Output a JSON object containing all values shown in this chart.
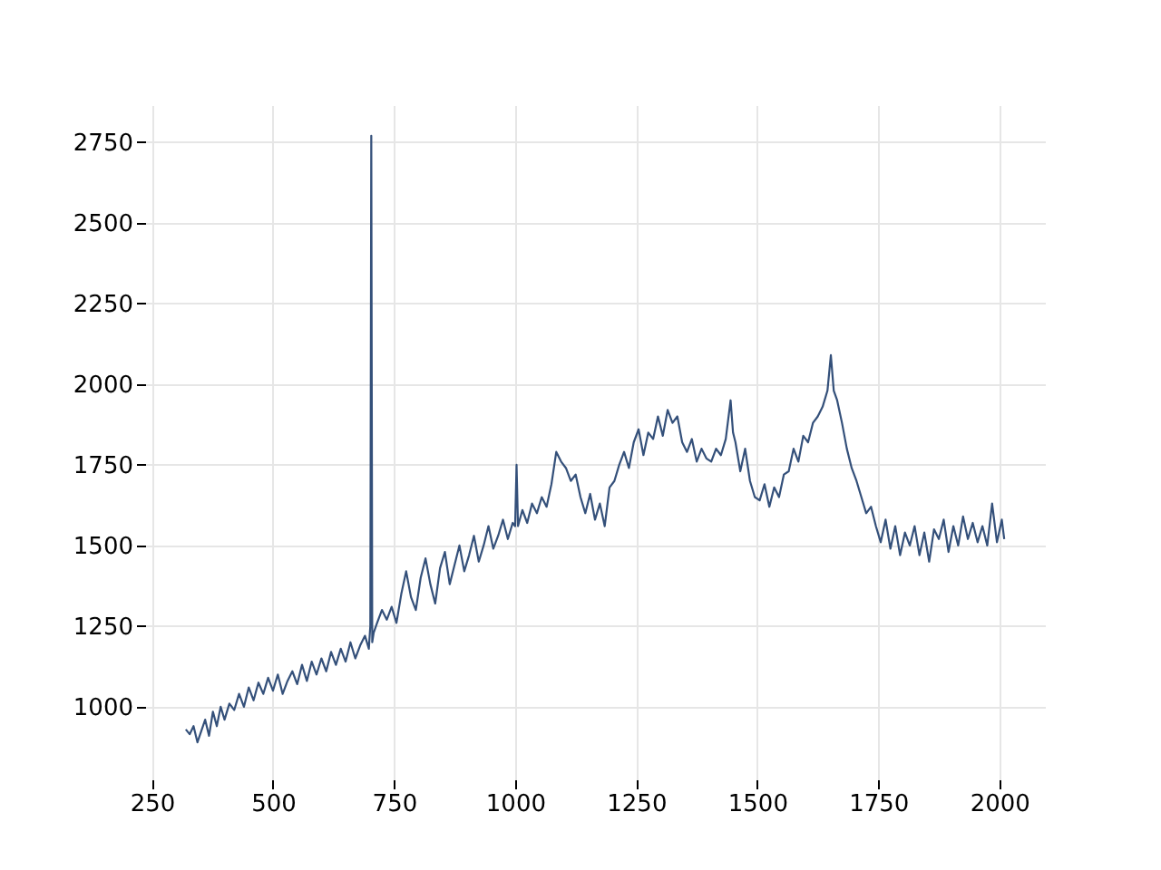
{
  "chart_data": {
    "type": "line",
    "x": [
      320,
      328,
      336,
      344,
      352,
      360,
      368,
      376,
      384,
      392,
      400,
      410,
      420,
      430,
      440,
      450,
      460,
      470,
      480,
      490,
      500,
      510,
      520,
      530,
      540,
      550,
      560,
      570,
      580,
      590,
      600,
      610,
      620,
      630,
      640,
      650,
      660,
      670,
      680,
      690,
      698,
      701,
      703,
      705,
      708,
      715,
      725,
      735,
      745,
      755,
      765,
      775,
      785,
      795,
      805,
      815,
      825,
      835,
      845,
      855,
      865,
      875,
      885,
      895,
      905,
      915,
      925,
      935,
      945,
      955,
      965,
      975,
      985,
      995,
      1000,
      1003,
      1006,
      1015,
      1025,
      1035,
      1045,
      1055,
      1065,
      1075,
      1085,
      1095,
      1105,
      1115,
      1125,
      1135,
      1145,
      1155,
      1165,
      1175,
      1185,
      1195,
      1205,
      1215,
      1225,
      1235,
      1245,
      1255,
      1265,
      1275,
      1285,
      1295,
      1305,
      1315,
      1325,
      1335,
      1345,
      1355,
      1365,
      1375,
      1385,
      1395,
      1405,
      1415,
      1425,
      1435,
      1445,
      1450,
      1455,
      1465,
      1475,
      1485,
      1495,
      1505,
      1515,
      1525,
      1535,
      1545,
      1555,
      1565,
      1575,
      1585,
      1595,
      1605,
      1615,
      1625,
      1635,
      1645,
      1652,
      1658,
      1665,
      1675,
      1685,
      1695,
      1705,
      1715,
      1725,
      1735,
      1745,
      1755,
      1765,
      1775,
      1785,
      1795,
      1805,
      1815,
      1825,
      1835,
      1845,
      1855,
      1865,
      1875,
      1885,
      1895,
      1905,
      1915,
      1925,
      1935,
      1945,
      1955,
      1965,
      1975,
      1985,
      1995,
      2005,
      2010
    ],
    "series": [
      {
        "color": "#34507a",
        "values": [
          930,
          915,
          940,
          890,
          925,
          960,
          910,
          985,
          940,
          1000,
          960,
          1010,
          990,
          1040,
          1000,
          1060,
          1020,
          1075,
          1040,
          1090,
          1050,
          1100,
          1040,
          1080,
          1110,
          1070,
          1130,
          1080,
          1140,
          1100,
          1150,
          1110,
          1170,
          1130,
          1180,
          1140,
          1200,
          1150,
          1190,
          1220,
          1180,
          1250,
          2770,
          1200,
          1230,
          1260,
          1300,
          1270,
          1310,
          1260,
          1350,
          1420,
          1340,
          1300,
          1400,
          1460,
          1380,
          1320,
          1430,
          1480,
          1380,
          1440,
          1500,
          1420,
          1470,
          1530,
          1450,
          1500,
          1560,
          1490,
          1530,
          1580,
          1520,
          1570,
          1560,
          1750,
          1560,
          1610,
          1570,
          1630,
          1600,
          1650,
          1620,
          1690,
          1790,
          1760,
          1740,
          1700,
          1720,
          1650,
          1600,
          1660,
          1580,
          1630,
          1560,
          1680,
          1700,
          1750,
          1790,
          1740,
          1820,
          1860,
          1780,
          1850,
          1830,
          1900,
          1840,
          1920,
          1880,
          1900,
          1820,
          1790,
          1830,
          1760,
          1800,
          1770,
          1760,
          1800,
          1780,
          1830,
          1950,
          1850,
          1820,
          1730,
          1800,
          1700,
          1650,
          1640,
          1690,
          1620,
          1680,
          1650,
          1720,
          1730,
          1800,
          1760,
          1840,
          1820,
          1880,
          1900,
          1930,
          1980,
          2090,
          1980,
          1950,
          1880,
          1800,
          1740,
          1700,
          1650,
          1600,
          1620,
          1560,
          1510,
          1580,
          1490,
          1560,
          1470,
          1540,
          1500,
          1560,
          1470,
          1540,
          1450,
          1550,
          1520,
          1580,
          1480,
          1560,
          1500,
          1590,
          1520,
          1570,
          1510,
          1560,
          1500,
          1630,
          1510,
          1580,
          1520
        ]
      }
    ],
    "xlim": [
      236,
      2094
    ],
    "ylim": [
      775,
      2865
    ],
    "xticks": [
      250,
      500,
      750,
      1000,
      1250,
      1500,
      1750,
      2000
    ],
    "yticks": [
      1000,
      1250,
      1500,
      1750,
      2000,
      2250,
      2500,
      2750
    ],
    "grid": true
  }
}
